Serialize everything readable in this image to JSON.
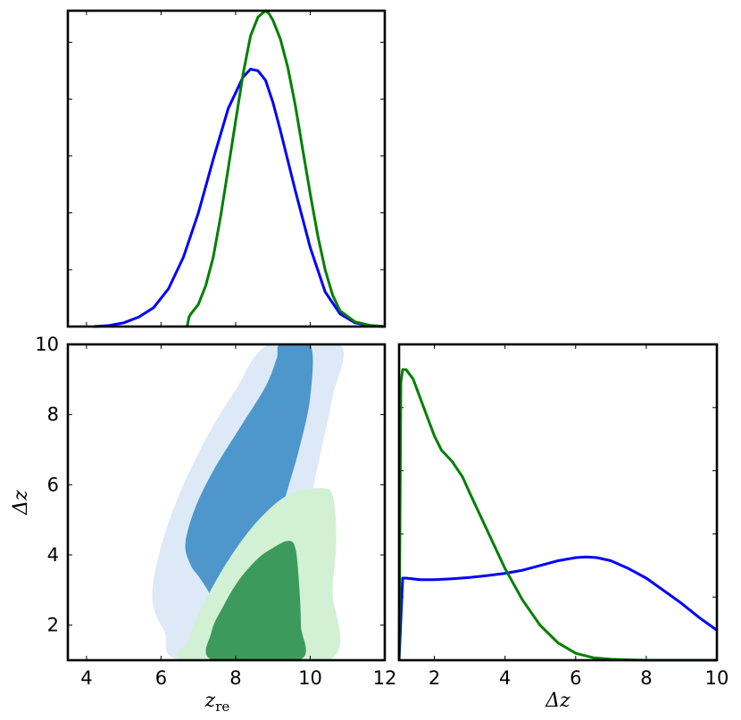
{
  "chart_data": [
    {
      "type": "line",
      "panel": "zre marginal",
      "xlim": [
        3.5,
        12
      ],
      "ylim": [
        0,
        1
      ],
      "ticks_shown": false,
      "series": [
        {
          "color": "#0000ff",
          "x": [
            4.2,
            4.6,
            5.0,
            5.4,
            5.8,
            6.2,
            6.6,
            7.0,
            7.4,
            7.8,
            8.2,
            8.4,
            8.6,
            8.8,
            9.0,
            9.2,
            9.6,
            10.0,
            10.4,
            10.8,
            11.2,
            11.6,
            12.0
          ],
          "y": [
            0.0,
            0.003,
            0.012,
            0.03,
            0.06,
            0.12,
            0.22,
            0.36,
            0.53,
            0.69,
            0.79,
            0.815,
            0.81,
            0.78,
            0.71,
            0.62,
            0.43,
            0.25,
            0.11,
            0.04,
            0.012,
            0.003,
            0.0
          ]
        },
        {
          "color": "#008000",
          "x": [
            6.7,
            6.75,
            6.8,
            7.0,
            7.2,
            7.4,
            7.6,
            7.8,
            8.0,
            8.2,
            8.4,
            8.6,
            8.8,
            8.9,
            9.0,
            9.2,
            9.4,
            9.6,
            9.8,
            10.0,
            10.2,
            10.4,
            10.6,
            10.8,
            11.2,
            11.6,
            12.0
          ],
          "y": [
            0.0,
            0.03,
            0.04,
            0.07,
            0.13,
            0.22,
            0.35,
            0.5,
            0.65,
            0.8,
            0.92,
            0.98,
            1.0,
            0.99,
            0.97,
            0.91,
            0.82,
            0.7,
            0.56,
            0.42,
            0.29,
            0.18,
            0.1,
            0.05,
            0.015,
            0.004,
            0.0
          ]
        }
      ]
    },
    {
      "type": "contour",
      "panel": "zre vs Delta z",
      "xlabel": "z_re",
      "ylabel": "Δz",
      "xlim": [
        3.5,
        12
      ],
      "ylim": [
        1,
        10
      ],
      "xticks": [
        "4",
        "6",
        "8",
        "10",
        "12"
      ],
      "yticks": [
        "2",
        "4",
        "6",
        "8",
        "10"
      ],
      "regions": [
        {
          "level": "outer",
          "color": "#dde9f6",
          "points": [
            [
              6.5,
              1.0
            ],
            [
              6.1,
              1.8
            ],
            [
              5.8,
              2.5
            ],
            [
              5.8,
              3.3
            ],
            [
              6.1,
              4.6
            ],
            [
              6.6,
              6.0
            ],
            [
              7.3,
              7.5
            ],
            [
              8.0,
              8.7
            ],
            [
              8.9,
              10.0
            ],
            [
              10.8,
              10.0
            ],
            [
              10.6,
              8.5
            ],
            [
              10.3,
              7.0
            ],
            [
              10.0,
              5.5
            ],
            [
              9.8,
              4.0
            ],
            [
              9.7,
              2.5
            ],
            [
              9.5,
              1.0
            ]
          ]
        },
        {
          "level": "inner",
          "color": "#4d97cc",
          "points": [
            [
              7.6,
              2.2
            ],
            [
              7.3,
              2.9
            ],
            [
              7.0,
              3.4
            ],
            [
              6.8,
              3.7
            ],
            [
              6.65,
              4.3
            ],
            [
              6.9,
              5.3
            ],
            [
              7.4,
              6.4
            ],
            [
              8.1,
              7.6
            ],
            [
              8.8,
              8.8
            ],
            [
              9.1,
              9.6
            ],
            [
              9.2,
              10.0
            ],
            [
              10.0,
              10.0
            ],
            [
              10.0,
              8.5
            ],
            [
              9.7,
              7.0
            ],
            [
              9.3,
              5.5
            ],
            [
              9.0,
              4.0
            ],
            [
              8.8,
              2.5
            ],
            [
              8.3,
              2.0
            ]
          ]
        },
        {
          "level": "outer",
          "color": "#d2f0d3",
          "points": [
            [
              6.7,
              1.0
            ],
            [
              6.75,
              1.6
            ],
            [
              7.0,
              2.3
            ],
            [
              7.6,
              3.5
            ],
            [
              8.3,
              4.6
            ],
            [
              9.0,
              5.4
            ],
            [
              9.6,
              5.8
            ],
            [
              10.3,
              5.9
            ],
            [
              10.6,
              5.7
            ],
            [
              10.7,
              4.5
            ],
            [
              10.6,
              3.0
            ],
            [
              10.5,
              1.0
            ]
          ]
        },
        {
          "level": "inner",
          "color": "#3c9a5c",
          "points": [
            [
              7.4,
              1.0
            ],
            [
              7.35,
              1.8
            ],
            [
              7.7,
              2.6
            ],
            [
              8.1,
              3.3
            ],
            [
              8.6,
              3.9
            ],
            [
              9.0,
              4.2
            ],
            [
              9.4,
              4.4
            ],
            [
              9.6,
              4.2
            ],
            [
              9.7,
              3.2
            ],
            [
              9.75,
              2.0
            ],
            [
              9.7,
              1.0
            ]
          ]
        }
      ]
    },
    {
      "type": "line",
      "panel": "Delta z marginal",
      "xlabel": "Δz",
      "xlim": [
        1,
        10
      ],
      "ylim": [
        0,
        1
      ],
      "xticks": [
        "2",
        "4",
        "6",
        "8",
        "10"
      ],
      "series": [
        {
          "color": "#0000ff",
          "x": [
            1.0,
            1.1,
            1.2,
            1.6,
            2.0,
            2.5,
            3.0,
            3.5,
            4.0,
            4.5,
            5.0,
            5.5,
            6.0,
            6.3,
            6.6,
            7.0,
            7.5,
            8.0,
            8.5,
            9.0,
            9.5,
            10.0
          ],
          "y": [
            0.0,
            0.26,
            0.26,
            0.255,
            0.255,
            0.258,
            0.262,
            0.268,
            0.275,
            0.285,
            0.3,
            0.315,
            0.325,
            0.327,
            0.325,
            0.315,
            0.29,
            0.26,
            0.22,
            0.18,
            0.135,
            0.095
          ]
        },
        {
          "color": "#008000",
          "x": [
            1.0,
            1.05,
            1.1,
            1.2,
            1.4,
            1.6,
            1.8,
            2.0,
            2.2,
            2.5,
            2.8,
            3.0,
            3.5,
            4.0,
            4.5,
            5.0,
            5.5,
            6.0,
            6.5,
            7.0,
            7.5,
            8.0,
            9.0,
            10.0
          ],
          "y": [
            0.0,
            0.88,
            0.92,
            0.92,
            0.89,
            0.83,
            0.77,
            0.71,
            0.665,
            0.63,
            0.58,
            0.53,
            0.41,
            0.29,
            0.19,
            0.11,
            0.055,
            0.022,
            0.008,
            0.003,
            0.001,
            0.0,
            0.0,
            0.0
          ]
        }
      ]
    }
  ]
}
